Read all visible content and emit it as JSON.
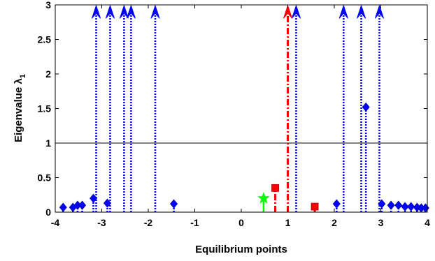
{
  "chart_data": {
    "type": "scatter",
    "xlabel": "Equilibrium points",
    "ylabel": "Eigenvalue λ",
    "ylabel_subscript": "1",
    "xlim": [
      -4,
      4
    ],
    "ylim": [
      0,
      3
    ],
    "xticks": [
      -4,
      -3,
      -2,
      -1,
      0,
      1,
      2,
      3,
      4
    ],
    "yticks": [
      0,
      0.5,
      1,
      1.5,
      2,
      2.5,
      3
    ],
    "xtick_labels": [
      "-4",
      "-3",
      "-2",
      "-1",
      "0",
      "1",
      "2",
      "3",
      "4"
    ],
    "ytick_labels": [
      "0",
      "0.5",
      "1",
      "1.5",
      "2",
      "2.5",
      "3"
    ],
    "reference_line_y": 1,
    "grid": false,
    "colors": {
      "blue": "#0000ff",
      "red": "#ff0000",
      "green": "#00ff00",
      "black": "#000000"
    },
    "series": [
      {
        "marker": "diamond",
        "color": "#0000ff",
        "line_style": "dotted",
        "points": [
          {
            "x": -3.83,
            "y": 0.07
          },
          {
            "x": -3.62,
            "y": 0.07
          },
          {
            "x": -3.52,
            "y": 0.1
          },
          {
            "x": -3.42,
            "y": 0.1
          },
          {
            "x": -3.18,
            "y": 0.2
          },
          {
            "x": -3.12,
            "y": 3,
            "offscale": true
          },
          {
            "x": -2.88,
            "y": 0.13
          },
          {
            "x": -2.82,
            "y": 3,
            "offscale": true
          },
          {
            "x": -2.52,
            "y": 3,
            "offscale": true
          },
          {
            "x": -2.37,
            "y": 3,
            "offscale": true
          },
          {
            "x": -1.85,
            "y": 3,
            "offscale": true
          },
          {
            "x": -1.45,
            "y": 0.12
          },
          {
            "x": 1.18,
            "y": 3,
            "offscale": true
          },
          {
            "x": 2.05,
            "y": 0.12
          },
          {
            "x": 2.2,
            "y": 3,
            "offscale": true
          },
          {
            "x": 2.58,
            "y": 3,
            "offscale": true
          },
          {
            "x": 2.68,
            "y": 1.52
          },
          {
            "x": 2.97,
            "y": 3,
            "offscale": true
          },
          {
            "x": 3.02,
            "y": 0.12
          },
          {
            "x": 3.22,
            "y": 0.1
          },
          {
            "x": 3.38,
            "y": 0.1
          },
          {
            "x": 3.52,
            "y": 0.08
          },
          {
            "x": 3.65,
            "y": 0.08
          },
          {
            "x": 3.78,
            "y": 0.07
          },
          {
            "x": 3.87,
            "y": 0.06
          },
          {
            "x": 3.96,
            "y": 0.06
          }
        ]
      },
      {
        "marker": "square",
        "color": "#ff0000",
        "line_style": "dashdot",
        "points": [
          {
            "x": 0.73,
            "y": 0.35
          },
          {
            "x": 1.0,
            "y": 3,
            "offscale": true
          },
          {
            "x": 1.58,
            "y": 0.08
          }
        ]
      },
      {
        "marker": "star",
        "color": "#00ff00",
        "line_style": "solid",
        "points": [
          {
            "x": 0.48,
            "y": 0.2
          }
        ]
      }
    ]
  }
}
